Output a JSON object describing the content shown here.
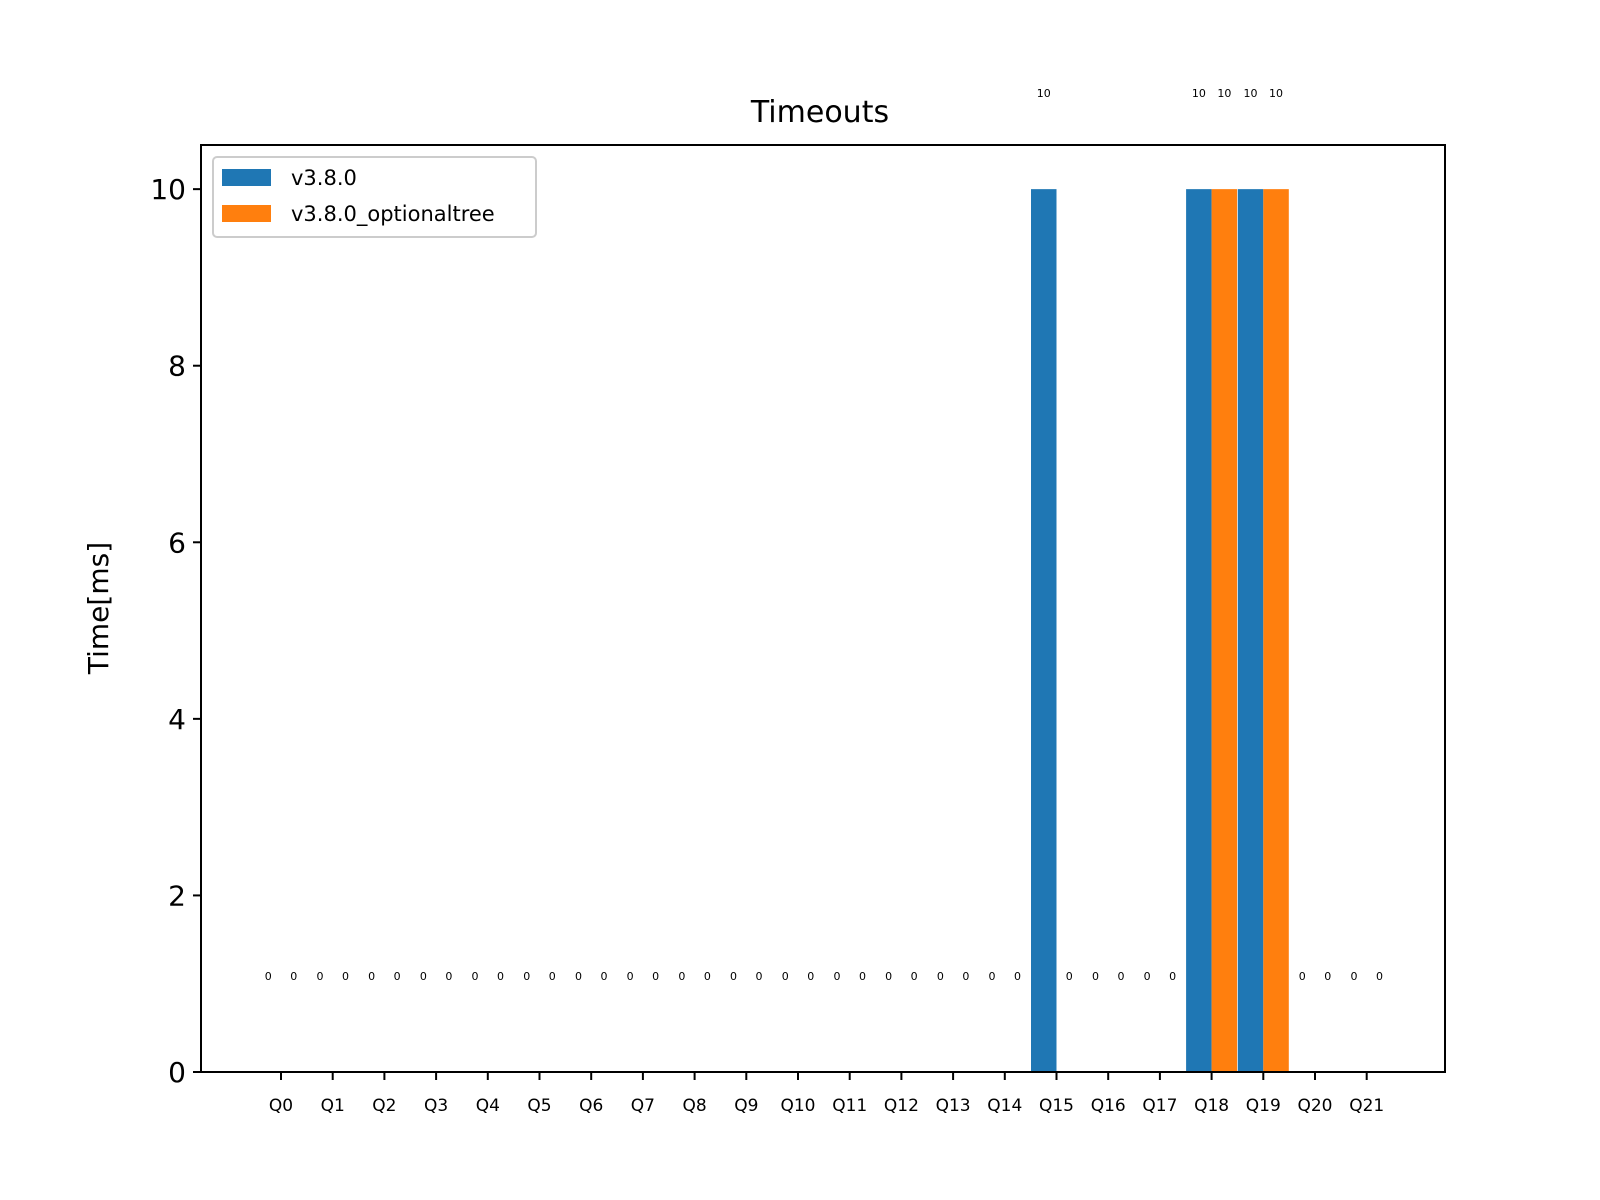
{
  "chart_data": {
    "type": "bar",
    "title": "Timeouts",
    "xlabel": "",
    "ylabel": "Time[ms]",
    "ylim": [
      0,
      10.5
    ],
    "yticks": [
      0,
      2,
      4,
      6,
      8,
      10
    ],
    "grid": false,
    "legend_position": "upper-left",
    "categories": [
      "Q0",
      "Q1",
      "Q2",
      "Q3",
      "Q4",
      "Q5",
      "Q6",
      "Q7",
      "Q8",
      "Q9",
      "Q10",
      "Q11",
      "Q12",
      "Q13",
      "Q14",
      "Q15",
      "Q16",
      "Q17",
      "Q18",
      "Q19",
      "Q20",
      "Q21"
    ],
    "series": [
      {
        "name": "v3.8.0",
        "color": "#1f77b4",
        "values": [
          0,
          0,
          0,
          0,
          0,
          0,
          0,
          0,
          0,
          0,
          0,
          0,
          0,
          0,
          0,
          10,
          0,
          0,
          10,
          10,
          0,
          0
        ]
      },
      {
        "name": "v3.8.0_optionaltree",
        "color": "#ff7f0e",
        "values": [
          0,
          0,
          0,
          0,
          0,
          0,
          0,
          0,
          0,
          0,
          0,
          0,
          0,
          0,
          0,
          0,
          0,
          0,
          10,
          10,
          0,
          0
        ]
      }
    ]
  }
}
